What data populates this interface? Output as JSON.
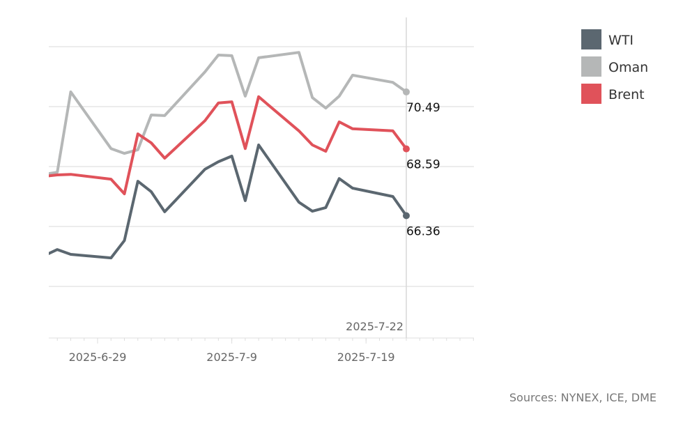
{
  "chart_data": {
    "type": "line",
    "title": "",
    "xlabel": "",
    "ylabel": "",
    "x": [
      "2025-06-25",
      "2025-06-26",
      "2025-06-27",
      "2025-06-30",
      "2025-07-01",
      "2025-07-02",
      "2025-07-03",
      "2025-07-04",
      "2025-07-07",
      "2025-07-08",
      "2025-07-09",
      "2025-07-10",
      "2025-07-11",
      "2025-07-14",
      "2025-07-15",
      "2025-07-16",
      "2025-07-17",
      "2025-07-18",
      "2025-07-21",
      "2025-07-22"
    ],
    "series": [
      {
        "name": "WTI",
        "color": "#5b6770",
        "values": [
          65.02,
          65.23,
          65.07,
          64.95,
          65.53,
          67.51,
          67.16,
          66.49,
          67.91,
          68.16,
          68.35,
          66.86,
          68.72,
          66.81,
          66.51,
          66.63,
          67.6,
          67.28,
          67.0,
          66.36
        ],
        "end_label": "66.36"
      },
      {
        "name": "Oman",
        "color": "#b5b7b7",
        "values": [
          67.74,
          67.81,
          70.49,
          68.6,
          68.44,
          68.56,
          69.72,
          69.7,
          71.16,
          71.72,
          71.7,
          70.35,
          71.63,
          71.81,
          70.3,
          69.95,
          70.35,
          71.05,
          70.81,
          70.49
        ],
        "end_label": "70.49"
      },
      {
        "name": "Brent",
        "color": "#e0525a",
        "values": [
          67.67,
          67.72,
          67.74,
          67.58,
          67.09,
          69.09,
          68.79,
          68.28,
          69.53,
          70.12,
          70.16,
          68.6,
          70.33,
          69.19,
          68.72,
          68.51,
          69.49,
          69.26,
          69.19,
          68.59
        ],
        "end_label": "68.59"
      }
    ],
    "xlim": [
      "2025-06-25",
      "2025-07-27"
    ],
    "ylim": [
      62.25,
      73
    ],
    "y_gridlines": [
      64,
      66,
      68,
      70,
      72
    ],
    "x_tick_labels": [
      "2025-6-29",
      "2025-7-9",
      "2025-7-19"
    ],
    "x_ticks": [
      "2025-06-29",
      "2025-07-09",
      "2025-07-19"
    ],
    "y_tick_labels_shown": false,
    "grid": true,
    "legend_position": "top-right",
    "reference_line": {
      "date": "2025-07-22",
      "label": "2025-7-22"
    }
  },
  "source": "Sources: NYNEX, ICE, DME"
}
